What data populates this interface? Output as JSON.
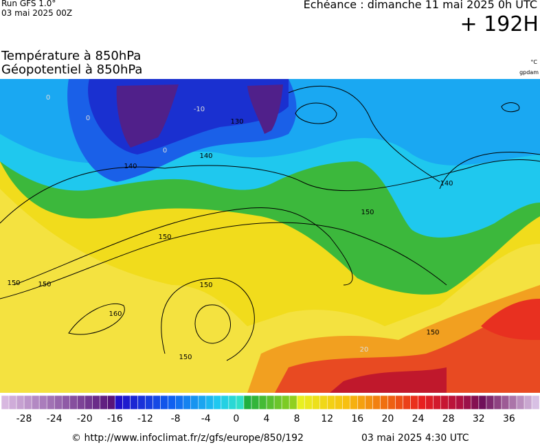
{
  "header": {
    "run": "Run GFS 1.0°",
    "run_date": "03 mai 2025 00Z",
    "forecast": "Echéance : dimanche 11 mai 2025 0h UTC",
    "lead": "+ 192H",
    "field1": "Température à 850hPa",
    "field2": "Géopotentiel à 850hPa",
    "unit1": "°C",
    "unit2": "gpdam"
  },
  "map": {
    "contour_labels": [
      "140",
      "150",
      "150",
      "150",
      "150",
      "160",
      "150",
      "150",
      "130",
      "140",
      "140",
      "150",
      "-10",
      "0",
      "0",
      "0",
      "20"
    ]
  },
  "colorbar": {
    "labels": [
      "-28",
      "-24",
      "-20",
      "-16",
      "-12",
      "-8",
      "-4",
      "0",
      "4",
      "8",
      "12",
      "16",
      "20",
      "24",
      "28",
      "32",
      "36"
    ]
  },
  "footer": {
    "source": "© http://www.infoclimat.fr/z/gfs/europe/850/192",
    "issued": "03 mai 2025  4:30 UTC"
  }
}
